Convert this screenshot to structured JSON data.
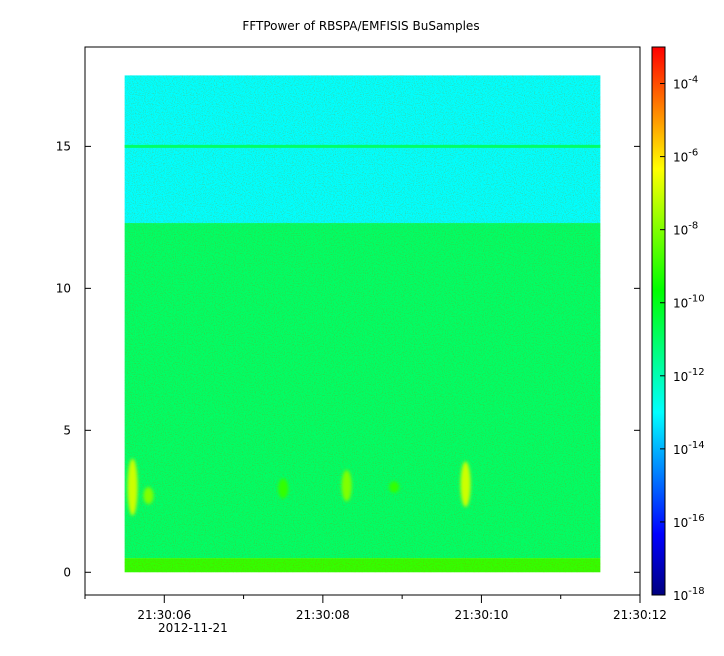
{
  "chart_data": {
    "type": "heatmap",
    "title": "FFTPower of RBSPA/EMFISIS  BuSamples",
    "xlabel": "",
    "ylabel": "",
    "x_axis": {
      "kind": "time",
      "date": "2012-11-21",
      "ticks": [
        "21:30:06",
        "21:30:08",
        "21:30:10",
        "21:30:12"
      ],
      "minor_ticks_between": 1,
      "range": [
        "21:30:05",
        "21:30:12"
      ]
    },
    "y_axis": {
      "ticks": [
        0,
        5,
        10,
        15
      ],
      "range": [
        -0.8,
        18.5
      ]
    },
    "data_extent": {
      "x": [
        "21:30:05.5",
        "21:30:11.5"
      ],
      "y": [
        0,
        17.5
      ]
    },
    "colorbar": {
      "scale": "log",
      "ticks": [
        "10-4",
        "10-6",
        "10-8",
        "10-10",
        "10-12",
        "10-14",
        "10-16",
        "10-18"
      ],
      "range": [
        "1e-18",
        "1e-3"
      ],
      "colormap": [
        "#00007f",
        "#0000ff",
        "#0080ff",
        "#00ffff",
        "#00ff80",
        "#00ff00",
        "#80ff00",
        "#ffff00",
        "#ff8000",
        "#ff0000"
      ]
    },
    "bands": [
      {
        "y": [
          12.3,
          17.5
        ],
        "level": "1e-13",
        "description": "upper band"
      },
      {
        "y": [
          0.5,
          12.3
        ],
        "level": "1e-11"
      },
      {
        "y": [
          0,
          0.5
        ],
        "level": "1e-9"
      }
    ],
    "line_feature": {
      "y": 15,
      "level": "1e-11"
    },
    "bursts": [
      {
        "x": "21:30:05.6",
        "y": [
          2,
          4
        ],
        "level": "1e-7"
      },
      {
        "x": "21:30:05.8",
        "y": [
          2.4,
          3.0
        ],
        "level": "1e-8"
      },
      {
        "x": "21:30:07.5",
        "y": [
          2.6,
          3.3
        ],
        "level": "1e-9"
      },
      {
        "x": "21:30:08.3",
        "y": [
          2.5,
          3.6
        ],
        "level": "1e-8"
      },
      {
        "x": "21:30:08.9",
        "y": [
          2.8,
          3.2
        ],
        "level": "1e-9"
      },
      {
        "x": "21:30:09.8",
        "y": [
          2.3,
          3.9
        ],
        "level": "1e-7"
      }
    ],
    "grid": false,
    "legend": "colorbar-right"
  }
}
